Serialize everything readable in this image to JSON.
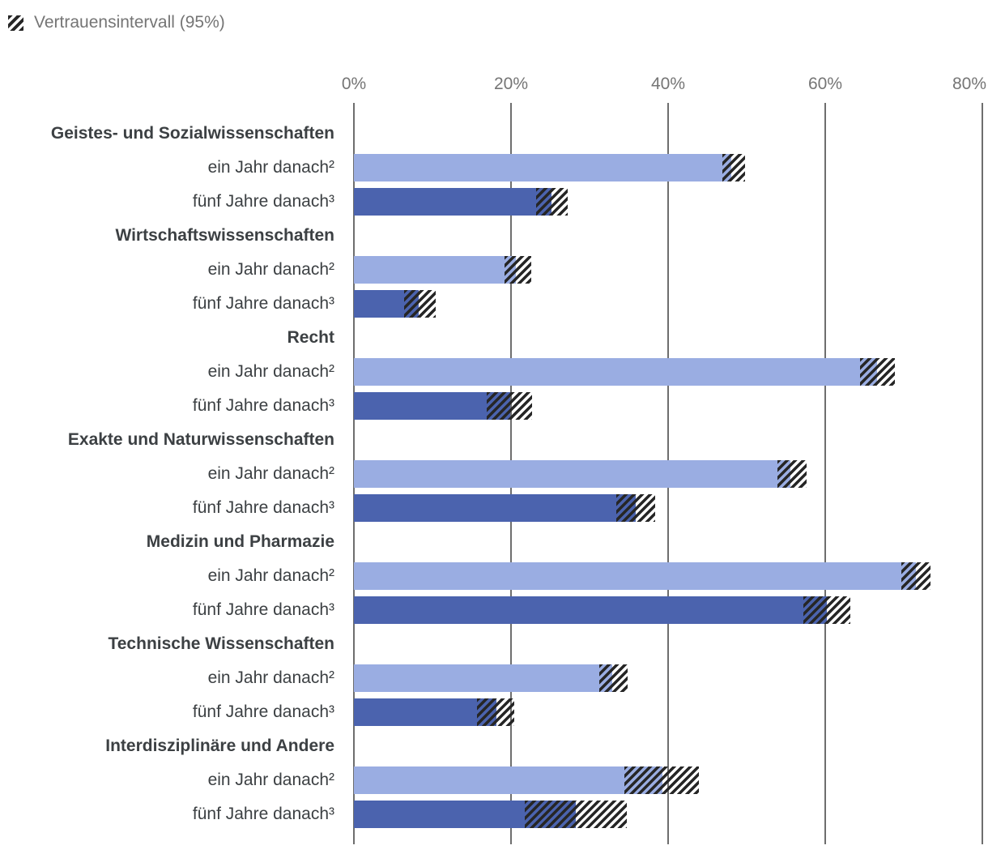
{
  "legend": {
    "icon": "hatch-swatch-icon",
    "label": "Vertrauensintervall (95%)"
  },
  "colors": {
    "bar_one_year": "#9AADE2",
    "bar_five_years": "#4B63AE",
    "hatch": "#262626",
    "grid": "#6E6E6E",
    "axis_text": "#757575",
    "label_text": "#3C4043"
  },
  "chart_data": {
    "type": "bar",
    "orientation": "horizontal",
    "title": "",
    "xlabel": "",
    "ylabel": "",
    "xlim": [
      0,
      80
    ],
    "x_ticks": [
      "0%",
      "20%",
      "40%",
      "60%",
      "80%"
    ],
    "grid": true,
    "legend_position": "top-left",
    "ci_level": "95%",
    "series_names": [
      "ein Jahr danach²",
      "fünf Jahre danach³"
    ],
    "groups": [
      {
        "category": "Geistes- und Sozialwissenschaften",
        "bars": [
          {
            "label": "ein Jahr danach²",
            "value": 48.0,
            "ci_low": 46.9,
            "ci_high": 49.8
          },
          {
            "label": "fünf Jahre danach³",
            "value": 25.2,
            "ci_low": 23.2,
            "ci_high": 27.2
          }
        ]
      },
      {
        "category": "Wirtschaftswissenschaften",
        "bars": [
          {
            "label": "ein Jahr danach²",
            "value": 20.6,
            "ci_low": 19.2,
            "ci_high": 22.6
          },
          {
            "label": "fünf Jahre danach³",
            "value": 8.2,
            "ci_low": 6.4,
            "ci_high": 10.4
          }
        ]
      },
      {
        "category": "Recht",
        "bars": [
          {
            "label": "ein Jahr danach²",
            "value": 66.6,
            "ci_low": 64.4,
            "ci_high": 68.9
          },
          {
            "label": "fünf Jahre danach³",
            "value": 19.9,
            "ci_low": 16.9,
            "ci_high": 22.7
          }
        ]
      },
      {
        "category": "Exakte und Naturwissenschaften",
        "bars": [
          {
            "label": "ein Jahr danach²",
            "value": 55.6,
            "ci_low": 53.9,
            "ci_high": 57.6
          },
          {
            "label": "fünf Jahre danach³",
            "value": 35.9,
            "ci_low": 33.4,
            "ci_high": 38.4
          }
        ]
      },
      {
        "category": "Medizin und Pharmazie",
        "bars": [
          {
            "label": "ein Jahr danach²",
            "value": 71.5,
            "ci_low": 69.7,
            "ci_high": 73.4
          },
          {
            "label": "fünf Jahre danach³",
            "value": 60.2,
            "ci_low": 57.2,
            "ci_high": 63.2
          }
        ]
      },
      {
        "category": "Technische Wissenschaften",
        "bars": [
          {
            "label": "ein Jahr danach²",
            "value": 32.9,
            "ci_low": 31.2,
            "ci_high": 34.8
          },
          {
            "label": "fünf Jahre danach³",
            "value": 18.1,
            "ci_low": 15.7,
            "ci_high": 20.4
          }
        ]
      },
      {
        "category": "Interdisziplinäre und Andere",
        "bars": [
          {
            "label": "ein Jahr danach²",
            "value": 39.3,
            "ci_low": 34.4,
            "ci_high": 43.9
          },
          {
            "label": "fünf Jahre danach³",
            "value": 28.2,
            "ci_low": 21.8,
            "ci_high": 34.7
          }
        ]
      }
    ]
  }
}
